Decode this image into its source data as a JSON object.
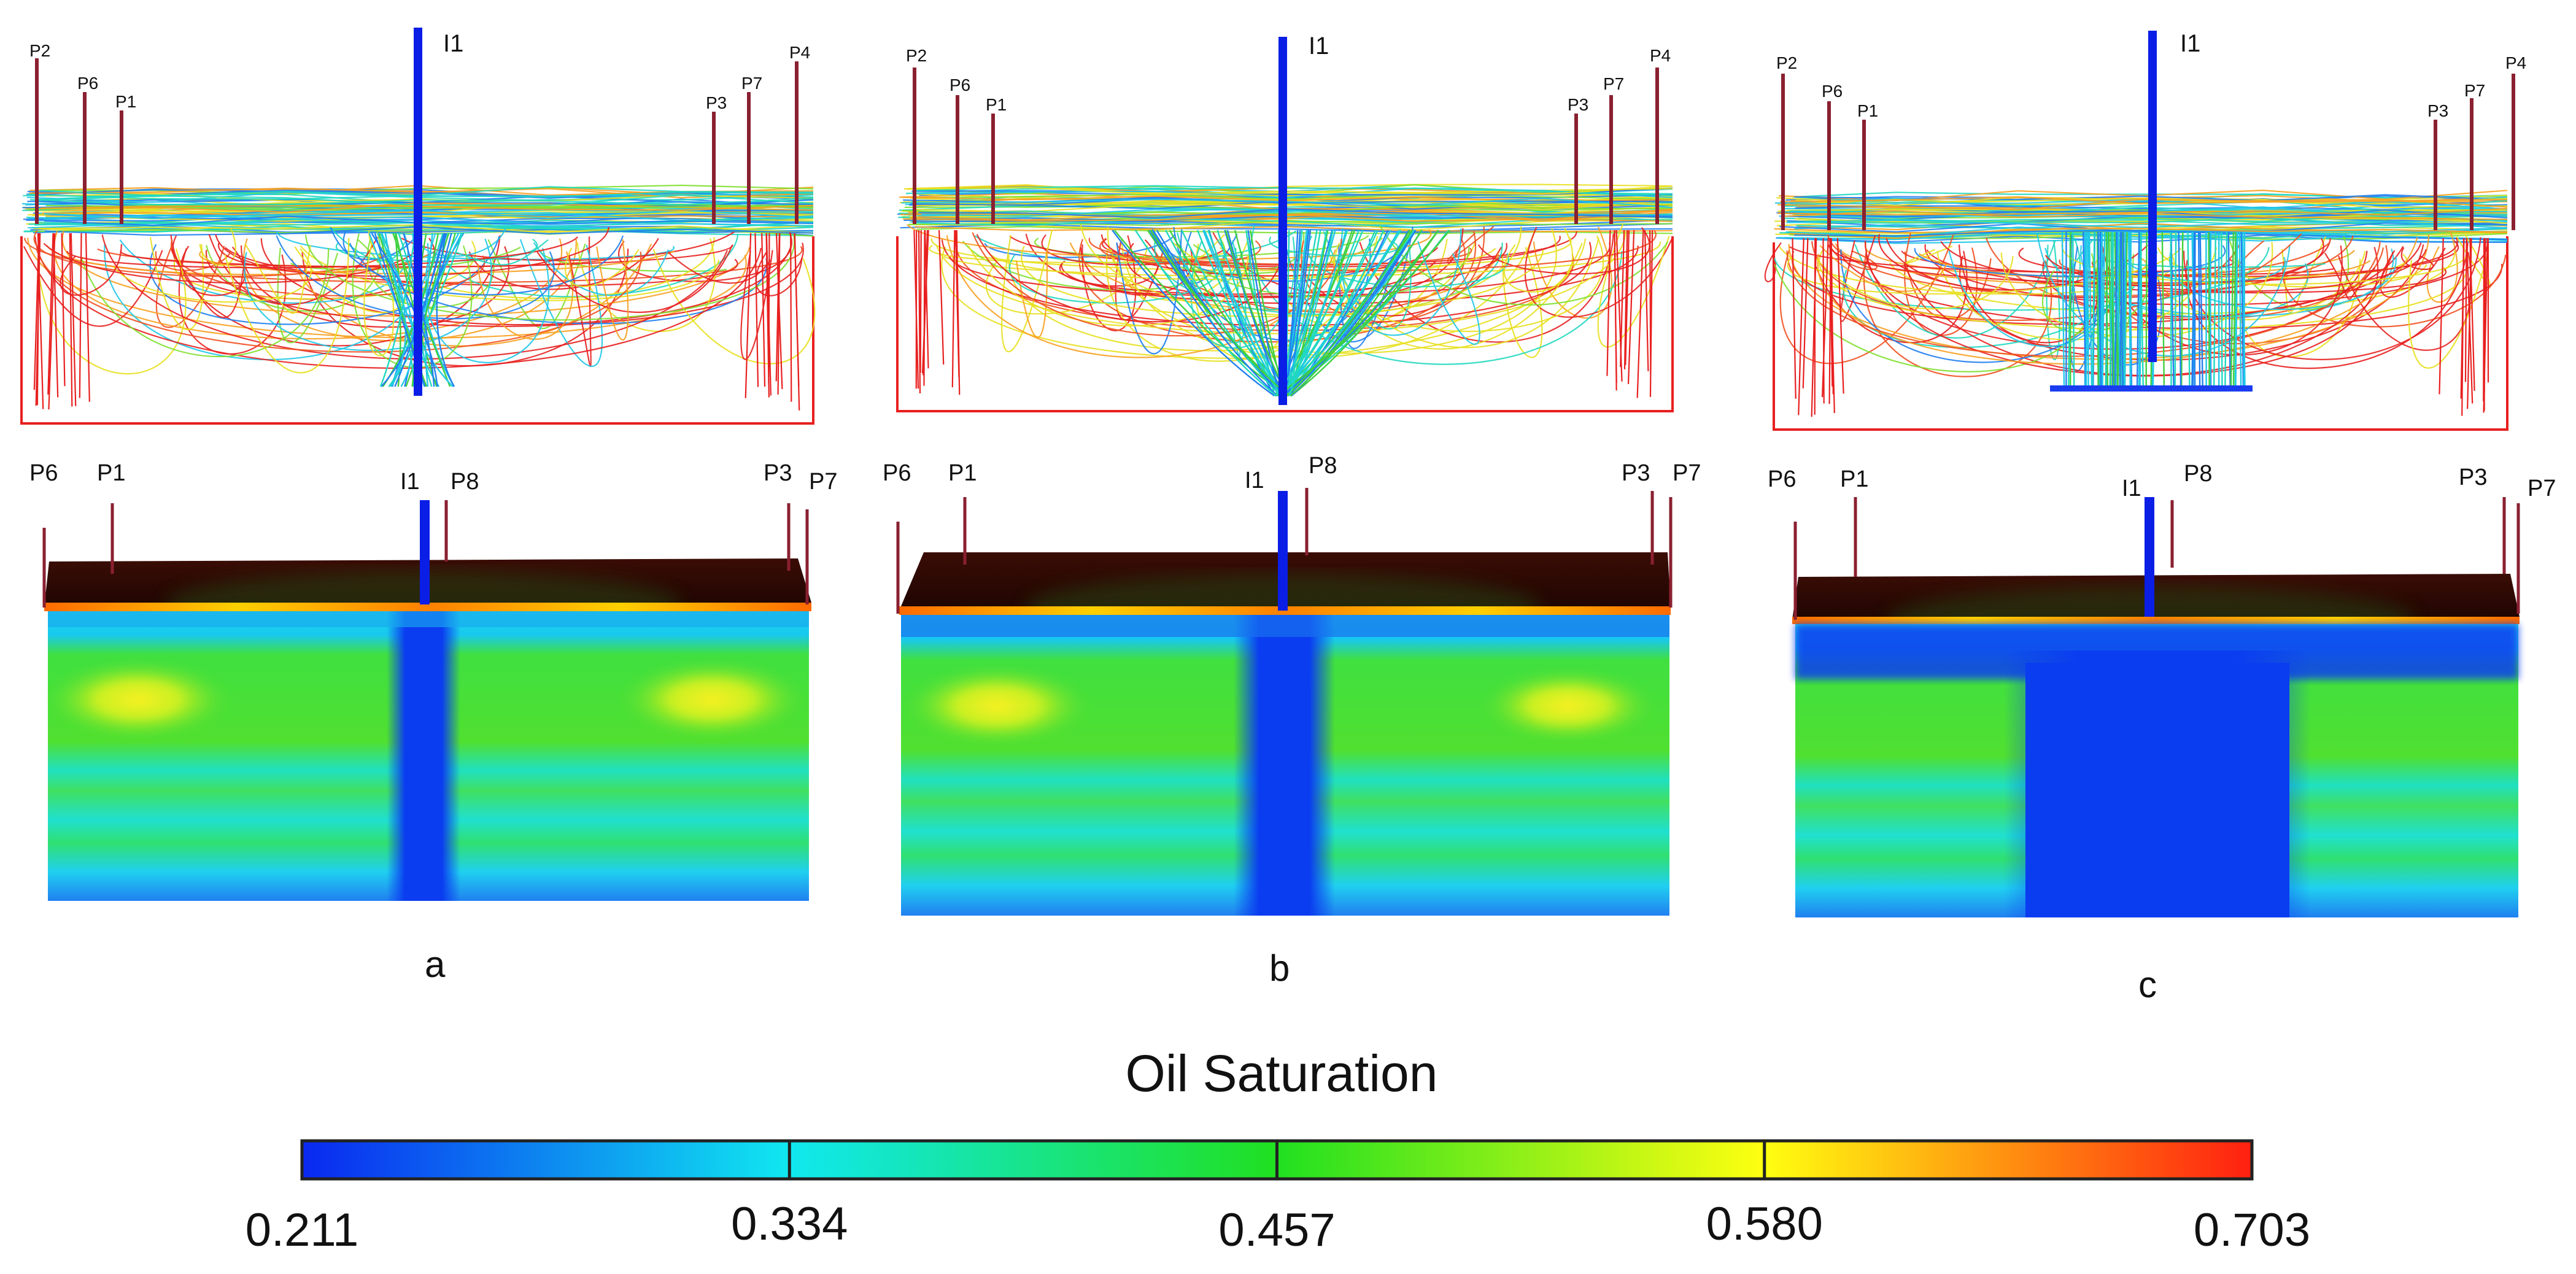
{
  "panels": [
    {
      "id": "a",
      "label": "a",
      "injector": "I1",
      "top_wells": [
        "P2",
        "P6",
        "P1",
        "P3",
        "P7",
        "P4"
      ],
      "bottom_wells": [
        "P6",
        "P1",
        "I1",
        "P8",
        "P3",
        "P7"
      ]
    },
    {
      "id": "b",
      "label": "b",
      "injector": "I1",
      "top_wells": [
        "P2",
        "P6",
        "P1",
        "P3",
        "P7",
        "P4"
      ],
      "bottom_wells": [
        "P6",
        "P1",
        "I1",
        "P8",
        "P3",
        "P7"
      ]
    },
    {
      "id": "c",
      "label": "c",
      "injector": "I1",
      "top_wells": [
        "P2",
        "P6",
        "P1",
        "P3",
        "P7",
        "P4"
      ],
      "bottom_wells": [
        "P6",
        "P1",
        "I1",
        "P8",
        "P3",
        "P7"
      ]
    }
  ],
  "colorbar": {
    "title": "Oil Saturation",
    "ticks": [
      "0.211",
      "0.334",
      "0.457",
      "0.580",
      "0.703"
    ],
    "range": [
      0.211,
      0.703
    ],
    "colors": [
      "#1030f0",
      "#00e0e0",
      "#20e020",
      "#ffff00",
      "#ff2010"
    ]
  },
  "colors": {
    "injector": "#0a1ee6",
    "producer": "#8a2030",
    "streamline_hot": "#e82020",
    "reservoir_top": "#3a0d05"
  }
}
